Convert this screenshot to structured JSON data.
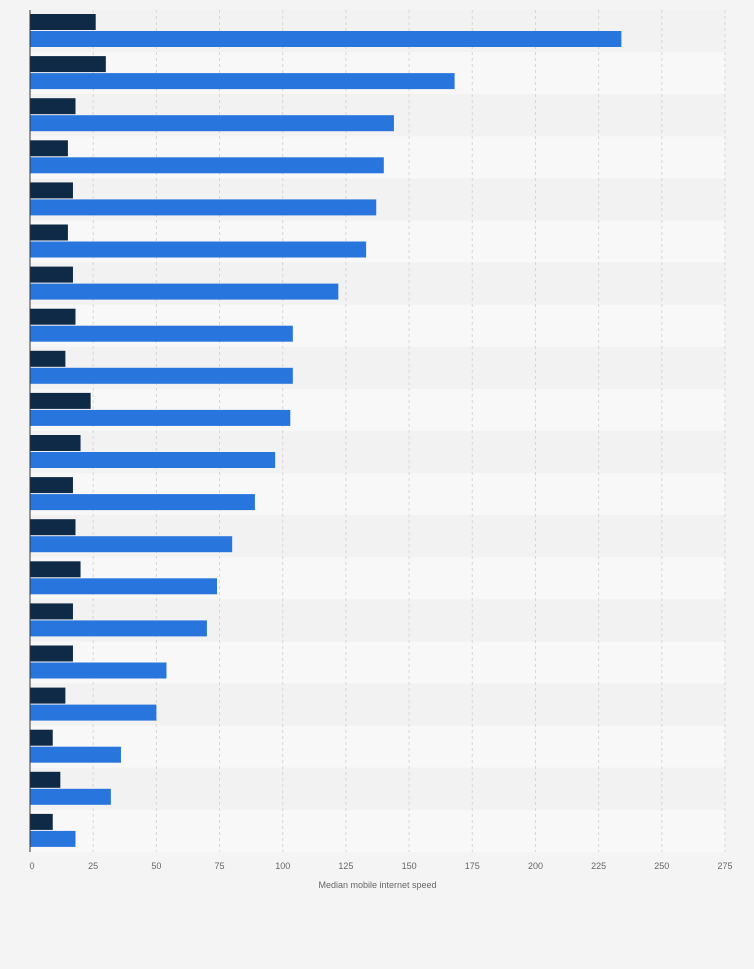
{
  "chart_data": {
    "type": "bar",
    "orientation": "horizontal",
    "title": "",
    "xlabel": "Median mobile internet speed",
    "ylabel": "",
    "xlim": [
      0,
      275
    ],
    "x_ticks": [
      "0",
      "25",
      "50",
      "75",
      "100",
      "125",
      "150",
      "175",
      "200",
      "225",
      "250",
      "275"
    ],
    "grid": true,
    "legend": "none",
    "categories": [
      "",
      "",
      "",
      "",
      "",
      "",
      "",
      "",
      "",
      "",
      "",
      "",
      "",
      "",
      "",
      "",
      "",
      "",
      "",
      ""
    ],
    "series": [
      {
        "color": "#0f2a47",
        "values": [
          26,
          30,
          18,
          15,
          17,
          15,
          17,
          18,
          14,
          24,
          20,
          17,
          18,
          20,
          17,
          17,
          14,
          9,
          12,
          9
        ]
      },
      {
        "color": "#2876dd",
        "values": [
          234,
          168,
          144,
          140,
          137,
          133,
          122,
          104,
          104,
          103,
          97,
          89,
          80,
          74,
          70,
          54,
          50,
          36,
          32,
          18
        ]
      }
    ]
  }
}
